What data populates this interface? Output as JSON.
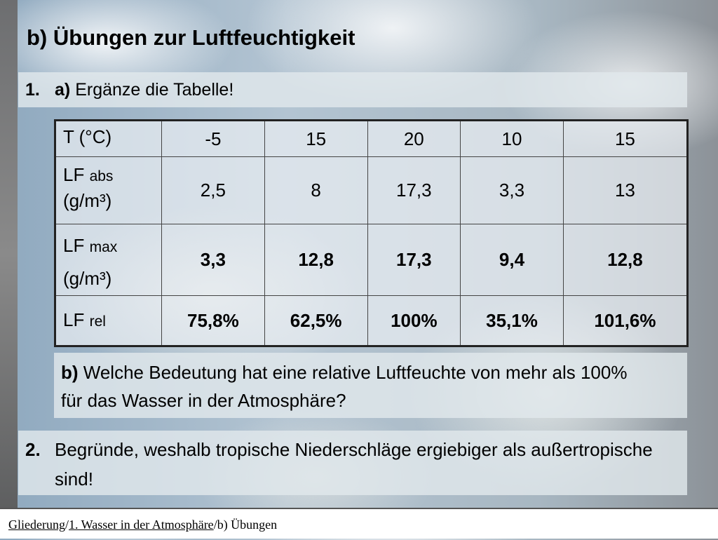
{
  "title": "b) Übungen zur Luftfeuchtigkeit",
  "task1": {
    "number": "1.",
    "part": "a)",
    "text": "Ergänze die Tabelle!"
  },
  "table": {
    "rows": [
      {
        "label": "T (°C)",
        "cells": [
          "-5",
          "15",
          "20",
          "10",
          "15"
        ]
      },
      {
        "label": "LF",
        "sub": "abs",
        "unit": "(g/m³)",
        "cells": [
          "2,5",
          "8",
          "17,3",
          "3,3",
          "13"
        ]
      },
      {
        "label": "LF",
        "sub": "max",
        "unit": "(g/m³)",
        "cells": [
          "3,3",
          "12,8",
          "17,3",
          "9,4",
          "12,8"
        ]
      },
      {
        "label": "LF",
        "sub": "rel",
        "cells": [
          "75,8%",
          "62,5%",
          "100%",
          "35,1%",
          "101,6%"
        ]
      }
    ]
  },
  "task1b": {
    "part": "b)",
    "text": "Welche Bedeutung hat eine relative Luftfeuchte von mehr als 100% für das Wasser in der Atmosphäre?"
  },
  "task2": {
    "number": "2.",
    "text": "Begründe, weshalb tropische Niederschläge ergiebiger als außertropische sind!"
  },
  "footer": {
    "items": [
      "Gliederung",
      "/",
      "1. Wasser in der Atmosphäre",
      "/b) Übungen"
    ]
  }
}
